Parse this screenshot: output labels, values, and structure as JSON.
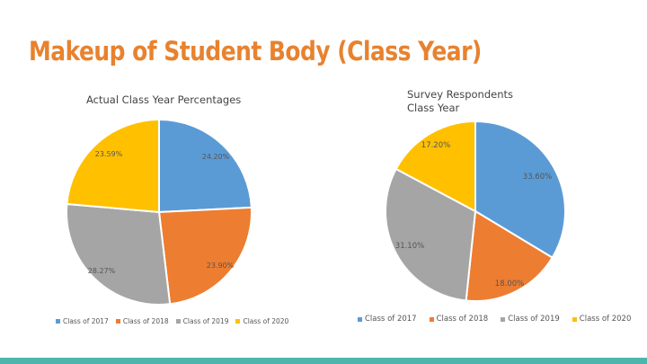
{
  "slide": {
    "title": "Makeup of Student Body (Class Year)",
    "accent_color": "#e8822e",
    "bottom_bar_color": "#4db6ac"
  },
  "chart_data": [
    {
      "type": "pie",
      "title": "Actual Class Year Percentages",
      "categories": [
        "Class of 2017",
        "Class of 2018",
        "Class of 2019",
        "Class of 2020"
      ],
      "values": [
        24.2,
        23.9,
        28.27,
        23.59
      ],
      "labels": [
        "24.20%",
        "23.90%",
        "28.27%",
        "23.59%"
      ],
      "colors": [
        "#5b9bd5",
        "#ed7d31",
        "#a5a5a5",
        "#ffc000"
      ],
      "legend": "bottom"
    },
    {
      "type": "pie",
      "title": "Survey Respondents Class Year",
      "categories": [
        "Class of 2017",
        "Class of 2018",
        "Class of 2019",
        "Class of 2020"
      ],
      "values": [
        33.6,
        18.0,
        31.1,
        17.2
      ],
      "labels": [
        "33.60%",
        "18.00%",
        "31.10%",
        "17.20%"
      ],
      "colors": [
        "#5b9bd5",
        "#ed7d31",
        "#a5a5a5",
        "#ffc000"
      ],
      "legend": "bottom"
    }
  ]
}
